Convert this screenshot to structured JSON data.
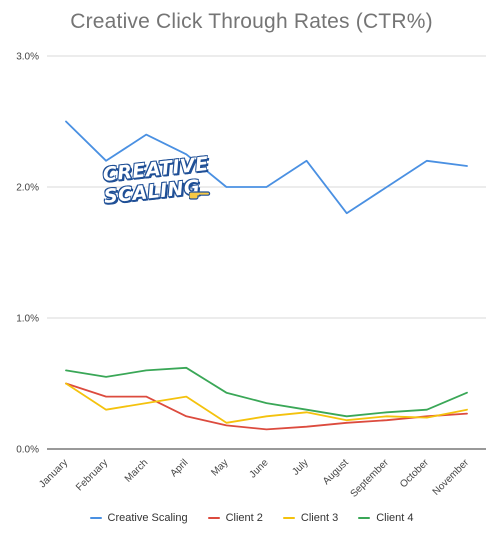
{
  "chart_data": {
    "type": "line",
    "title": "Creative Click Through Rates (CTR%)",
    "categories": [
      "January",
      "February",
      "March",
      "April",
      "May",
      "June",
      "July",
      "August",
      "September",
      "October",
      "November"
    ],
    "ylim": [
      0,
      3
    ],
    "yticks": [
      0,
      1,
      2,
      3
    ],
    "ytick_labels": [
      "0.0%",
      "1.0%",
      "2.0%",
      "3.0%"
    ],
    "grid": true,
    "legend": "bottom",
    "series": [
      {
        "name": "Creative Scaling",
        "color": "#4a90e2",
        "values": [
          2.5,
          2.2,
          2.4,
          2.25,
          2.0,
          2.0,
          2.2,
          1.8,
          2.0,
          2.2,
          2.16
        ]
      },
      {
        "name": "Client 2",
        "color": "#dc4b3e",
        "values": [
          0.5,
          0.4,
          0.4,
          0.25,
          0.18,
          0.15,
          0.17,
          0.2,
          0.22,
          0.25,
          0.27
        ]
      },
      {
        "name": "Client 3",
        "color": "#f4c20d",
        "values": [
          0.5,
          0.3,
          0.35,
          0.4,
          0.2,
          0.25,
          0.28,
          0.22,
          0.25,
          0.24,
          0.3
        ]
      },
      {
        "name": "Client 4",
        "color": "#3aa757",
        "values": [
          0.6,
          0.55,
          0.6,
          0.62,
          0.43,
          0.35,
          0.3,
          0.25,
          0.28,
          0.3,
          0.43
        ]
      }
    ]
  },
  "watermark": {
    "line1": "CREATIVE",
    "line2": "SCALING",
    "icon": "pointing-hand-icon"
  }
}
